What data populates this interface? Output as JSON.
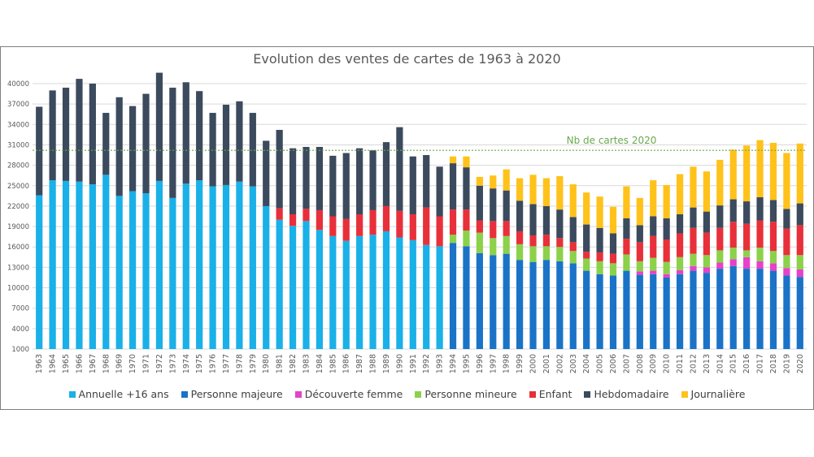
{
  "chart_data": {
    "type": "bar",
    "stacked": true,
    "title": "Evolution des ventes de cartes de 1963 à 2020",
    "ylim": [
      1000,
      40000
    ],
    "yticks": [
      1000,
      4000,
      7000,
      10000,
      13000,
      16000,
      19000,
      22000,
      25000,
      28000,
      31000,
      34000,
      37000,
      40000
    ],
    "grid": true,
    "legend_position": "bottom",
    "categories": [
      "1963",
      "1964",
      "1965",
      "1966",
      "1967",
      "1968",
      "1969",
      "1970",
      "1971",
      "1972",
      "1973",
      "1974",
      "1975",
      "1976",
      "1977",
      "1978",
      "1979",
      "1980",
      "1981",
      "1982",
      "1983",
      "1984",
      "1985",
      "1986",
      "1987",
      "1988",
      "1989",
      "1990",
      "1991",
      "1992",
      "1993",
      "1994",
      "1995",
      "1996",
      "1997",
      "1998",
      "1999",
      "2000",
      "2001",
      "2002",
      "2003",
      "2004",
      "2005",
      "2006",
      "2007",
      "2008",
      "2009",
      "2010",
      "2011",
      "2012",
      "2013",
      "2014",
      "2015",
      "2016",
      "2017",
      "2018",
      "2019",
      "2020"
    ],
    "series": [
      {
        "name": "Annuelle +16 ans",
        "color": "#1ab0e8",
        "values": [
          22600,
          24800,
          24700,
          24600,
          24200,
          25600,
          22500,
          23200,
          22900,
          24700,
          22200,
          24300,
          24800,
          23900,
          24100,
          24600,
          23900,
          21000,
          19000,
          18100,
          18800,
          17500,
          16600,
          15900,
          16600,
          16800,
          17300,
          16400,
          16000,
          15300,
          15100,
          0,
          0,
          0,
          0,
          0,
          0,
          0,
          0,
          0,
          0,
          0,
          0,
          0,
          0,
          0,
          0,
          0,
          0,
          0,
          0,
          0,
          0,
          0,
          0,
          0,
          0,
          0
        ]
      },
      {
        "name": "Personne majeure",
        "color": "#1a73c7",
        "values": [
          0,
          0,
          0,
          0,
          0,
          0,
          0,
          0,
          0,
          0,
          0,
          0,
          0,
          0,
          0,
          0,
          0,
          0,
          0,
          0,
          0,
          0,
          0,
          0,
          0,
          0,
          0,
          0,
          0,
          0,
          0,
          15600,
          15100,
          14100,
          13800,
          14000,
          13100,
          12800,
          13100,
          12900,
          12600,
          11500,
          11000,
          10800,
          11500,
          10900,
          11000,
          10500,
          11000,
          11500,
          11200,
          11800,
          12200,
          11800,
          11800,
          11500,
          10800,
          10600
        ]
      },
      {
        "name": "Découverte femme",
        "color": "#e642c8",
        "values": [
          0,
          0,
          0,
          0,
          0,
          0,
          0,
          0,
          0,
          0,
          0,
          0,
          0,
          0,
          0,
          0,
          0,
          0,
          0,
          0,
          0,
          0,
          0,
          0,
          0,
          0,
          0,
          0,
          0,
          0,
          0,
          0,
          0,
          0,
          0,
          0,
          0,
          0,
          0,
          0,
          0,
          0,
          0,
          0,
          0,
          500,
          500,
          500,
          600,
          700,
          800,
          900,
          1000,
          1700,
          1100,
          1100,
          1100,
          1100
        ]
      },
      {
        "name": "Personne mineure",
        "color": "#8cd14a",
        "values": [
          0,
          0,
          0,
          0,
          0,
          0,
          0,
          0,
          0,
          0,
          0,
          0,
          0,
          0,
          0,
          0,
          0,
          0,
          0,
          0,
          0,
          0,
          0,
          0,
          0,
          0,
          0,
          0,
          0,
          0,
          0,
          1200,
          2300,
          3000,
          2500,
          2600,
          2300,
          2300,
          2000,
          2100,
          1800,
          1800,
          1900,
          1800,
          2400,
          1500,
          1900,
          1800,
          1900,
          1800,
          1800,
          1800,
          1700,
          1000,
          2000,
          1800,
          1900,
          2100
        ]
      },
      {
        "name": "Enfant",
        "color": "#e8303a",
        "values": [
          0,
          0,
          0,
          0,
          0,
          0,
          0,
          0,
          0,
          0,
          0,
          0,
          0,
          0,
          0,
          0,
          0,
          0,
          1700,
          1700,
          1800,
          2900,
          2900,
          3200,
          3200,
          3600,
          3700,
          3900,
          3800,
          5500,
          4400,
          3700,
          3100,
          1800,
          2500,
          2200,
          1900,
          1600,
          1700,
          1300,
          1300,
          1000,
          1300,
          1400,
          2300,
          2800,
          3200,
          3300,
          3500,
          3800,
          3300,
          3300,
          3800,
          3900,
          4000,
          4300,
          3900,
          4400
        ]
      },
      {
        "name": "Hebdomadaire",
        "color": "#3c4a5e",
        "values": [
          13000,
          13200,
          13700,
          15100,
          14800,
          9100,
          14500,
          12500,
          14600,
          15900,
          16200,
          14900,
          13100,
          10800,
          11800,
          11800,
          10800,
          9600,
          11500,
          9700,
          9100,
          9300,
          8900,
          9700,
          9700,
          8800,
          9400,
          12300,
          8500,
          7700,
          7300,
          6800,
          6200,
          5100,
          4800,
          4500,
          4500,
          4600,
          4200,
          4200,
          3700,
          4000,
          3600,
          3000,
          3000,
          2500,
          2900,
          3100,
          2800,
          3000,
          3100,
          3300,
          3300,
          3300,
          3400,
          3200,
          2900,
          3200
        ]
      },
      {
        "name": "Journalière",
        "color": "#ffc21a",
        "values": [
          0,
          0,
          0,
          0,
          0,
          0,
          0,
          0,
          0,
          0,
          0,
          0,
          0,
          0,
          0,
          0,
          0,
          0,
          0,
          0,
          0,
          0,
          0,
          0,
          0,
          0,
          0,
          0,
          0,
          0,
          0,
          1000,
          1600,
          1300,
          1900,
          3100,
          3300,
          4300,
          4100,
          4900,
          4800,
          4700,
          4600,
          3900,
          4700,
          4000,
          5300,
          4900,
          5900,
          6000,
          5900,
          6700,
          7300,
          8200,
          8400,
          8400,
          8200,
          8800
        ]
      }
    ],
    "reference_line": {
      "label": "Nb de cartes 2020",
      "value": 30200,
      "color": "#6aa84f"
    }
  }
}
